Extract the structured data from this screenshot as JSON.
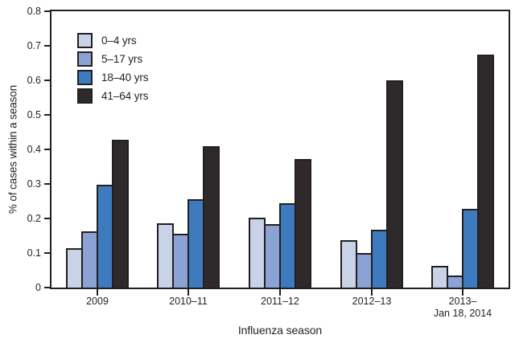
{
  "chart_data": {
    "type": "bar",
    "title": "",
    "xlabel": "Influenza season",
    "ylabel": "% of cases within a season",
    "ylim": [
      0,
      0.8
    ],
    "yticks": [
      0,
      0.1,
      0.2,
      0.3,
      0.4,
      0.5,
      0.6,
      0.7,
      0.8
    ],
    "grid": false,
    "legend_position": "top-left-inside",
    "bar_border_color": "#231f20",
    "categories": [
      "2009",
      "2010–11",
      "2011–12",
      "2012–13",
      "2013–\nJan 18, 2014"
    ],
    "series": [
      {
        "name": "0–4 yrs",
        "color": "#c9d3e8",
        "values": [
          0.113,
          0.185,
          0.202,
          0.137,
          0.063
        ]
      },
      {
        "name": "5–17 yrs",
        "color": "#8ba2d4",
        "values": [
          0.163,
          0.155,
          0.184,
          0.101,
          0.034
        ]
      },
      {
        "name": "18–40 yrs",
        "color": "#3e7bbe",
        "values": [
          0.298,
          0.255,
          0.245,
          0.168,
          0.227
        ]
      },
      {
        "name": "41–64 yrs",
        "color": "#2e2a2b",
        "values": [
          0.427,
          0.41,
          0.372,
          0.6,
          0.675
        ]
      }
    ]
  }
}
